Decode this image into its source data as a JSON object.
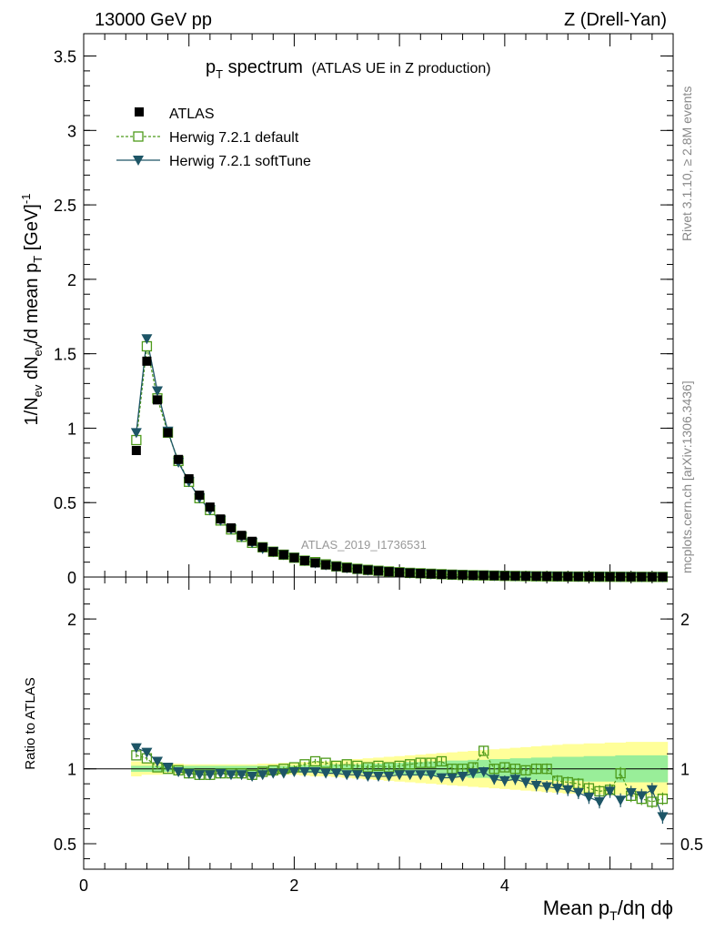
{
  "header": {
    "energy": "13000 GeV pp",
    "process": "Z (Drell-Yan)",
    "plot_title_main": "p",
    "plot_title_sub": "T",
    "plot_title_word": " spectrum",
    "plot_title_extra": "(ATLAS UE in Z production)",
    "analysis_id": "ATLAS_2019_I1736531"
  },
  "side_text": {
    "rivet": "Rivet 3.1.10, ≥ 2.8M events",
    "mcplots": "mcplots.cern.ch [arXiv:1306.3436]"
  },
  "axes": {
    "y_main_label": "1/N_ev dN_ev/d mean p_T [GeV]^-1",
    "y_main_parts": {
      "a": "1/N",
      "b": "ev",
      "c": " dN",
      "d": "ev",
      "e": "/d mean p",
      "f": "T",
      "g": " [GeV]",
      "h": "-1"
    },
    "y_ratio_label": "Ratio to ATLAS",
    "x_label_parts": {
      "a": "Mean p",
      "b": "T",
      "c": "/dη dϕ"
    }
  },
  "legend": [
    {
      "name": "ATLAS",
      "marker": "filled-square",
      "color": "#000000"
    },
    {
      "name": "Herwig 7.2.1 default",
      "marker": "open-square-dashed",
      "color": "#4d9a1a"
    },
    {
      "name": "Herwig 7.2.1 softTune",
      "marker": "filled-triangle-down",
      "color": "#1d5566"
    }
  ],
  "chart_data": [
    {
      "type": "scatter",
      "panel": "main",
      "xlim": [
        0,
        5.6
      ],
      "ylim": [
        0,
        3.65
      ],
      "yticks": [
        "0",
        "0.5",
        "1",
        "1.5",
        "2",
        "2.5",
        "3",
        "3.5"
      ],
      "xticks": [
        "0",
        "2",
        "4"
      ],
      "x": [
        0.5,
        0.6,
        0.7,
        0.8,
        0.9,
        1.0,
        1.1,
        1.2,
        1.3,
        1.4,
        1.5,
        1.6,
        1.7,
        1.8,
        1.9,
        2.0,
        2.1,
        2.2,
        2.3,
        2.4,
        2.5,
        2.6,
        2.7,
        2.8,
        2.9,
        3.0,
        3.1,
        3.2,
        3.3,
        3.4,
        3.5,
        3.6,
        3.7,
        3.8,
        3.9,
        4.0,
        4.1,
        4.2,
        4.3,
        4.4,
        4.5,
        4.6,
        4.7,
        4.8,
        4.9,
        5.0,
        5.1,
        5.2,
        5.3,
        5.4,
        5.5
      ],
      "series": [
        {
          "name": "ATLAS",
          "values": [
            0.85,
            1.45,
            1.19,
            0.97,
            0.79,
            0.66,
            0.55,
            0.47,
            0.39,
            0.33,
            0.28,
            0.24,
            0.2,
            0.17,
            0.15,
            0.13,
            0.11,
            0.095,
            0.082,
            0.071,
            0.062,
            0.054,
            0.047,
            0.041,
            0.036,
            0.031,
            0.027,
            0.024,
            0.021,
            0.018,
            0.016,
            0.014,
            0.012,
            0.011,
            0.0095,
            0.0083,
            0.0073,
            0.0064,
            0.0056,
            0.0049,
            0.0043,
            0.0038,
            0.0033,
            0.0029,
            0.0026,
            0.0023,
            0.002,
            0.0018,
            0.0016,
            0.0014,
            0.0012
          ]
        },
        {
          "name": "Herwig 7.2.1 default",
          "values": [
            0.92,
            1.55,
            1.2,
            0.97,
            0.78,
            0.64,
            0.53,
            0.45,
            0.38,
            0.32,
            0.27,
            0.23,
            0.2,
            0.17,
            0.15,
            0.13,
            0.11,
            0.1,
            0.085,
            0.072,
            0.064,
            0.055,
            0.048,
            0.042,
            0.037,
            0.032,
            0.028,
            0.025,
            0.022,
            0.019,
            0.016,
            0.014,
            0.012,
            0.011,
            0.0095,
            0.008,
            0.007,
            0.006,
            0.005,
            0.0044,
            0.0039,
            0.0034,
            0.0029,
            0.0025,
            0.0022,
            0.0019,
            0.0017,
            0.0015,
            0.0013,
            0.0011,
            0.001
          ]
        },
        {
          "name": "Herwig 7.2.1 softTune",
          "values": [
            0.97,
            1.6,
            1.25,
            0.98,
            0.77,
            0.64,
            0.53,
            0.45,
            0.38,
            0.32,
            0.27,
            0.23,
            0.19,
            0.17,
            0.15,
            0.13,
            0.11,
            0.093,
            0.08,
            0.069,
            0.06,
            0.052,
            0.045,
            0.039,
            0.034,
            0.03,
            0.026,
            0.023,
            0.02,
            0.017,
            0.015,
            0.013,
            0.011,
            0.01,
            0.0086,
            0.0074,
            0.0064,
            0.0055,
            0.0048,
            0.0042,
            0.0036,
            0.0032,
            0.0027,
            0.0023,
            0.0021,
            0.0018,
            0.0016,
            0.0013,
            0.0011,
            0.001,
            0.0008
          ]
        }
      ]
    },
    {
      "type": "scatter",
      "panel": "ratio",
      "ylabel": "Ratio to ATLAS",
      "xlim": [
        0,
        5.6
      ],
      "ylim": [
        0.33,
        2.28
      ],
      "yticks": [
        "0.5",
        "1",
        "2"
      ],
      "xticks": [
        "0",
        "2",
        "4"
      ],
      "x": [
        0.5,
        0.6,
        0.7,
        0.8,
        0.9,
        1.0,
        1.1,
        1.2,
        1.3,
        1.4,
        1.5,
        1.6,
        1.7,
        1.8,
        1.9,
        2.0,
        2.1,
        2.2,
        2.3,
        2.4,
        2.5,
        2.6,
        2.7,
        2.8,
        2.9,
        3.0,
        3.1,
        3.2,
        3.3,
        3.4,
        3.5,
        3.6,
        3.7,
        3.8,
        3.9,
        4.0,
        4.1,
        4.2,
        4.3,
        4.4,
        4.5,
        4.6,
        4.7,
        4.8,
        4.9,
        5.0,
        5.1,
        5.2,
        5.3,
        5.4,
        5.5
      ],
      "band_stat": [
        0.02,
        0.02,
        0.02,
        0.02,
        0.02,
        0.02,
        0.02,
        0.02,
        0.02,
        0.02,
        0.02,
        0.02,
        0.02,
        0.02,
        0.02,
        0.02,
        0.025,
        0.025,
        0.025,
        0.03,
        0.03,
        0.03,
        0.035,
        0.035,
        0.04,
        0.04,
        0.045,
        0.045,
        0.05,
        0.05,
        0.055,
        0.055,
        0.06,
        0.06,
        0.065,
        0.065,
        0.07,
        0.07,
        0.075,
        0.075,
        0.08,
        0.08,
        0.08,
        0.085,
        0.085,
        0.085,
        0.09,
        0.09,
        0.09,
        0.09,
        0.09
      ],
      "band_total": [
        0.05,
        0.04,
        0.04,
        0.035,
        0.035,
        0.03,
        0.03,
        0.03,
        0.03,
        0.03,
        0.03,
        0.03,
        0.035,
        0.035,
        0.04,
        0.04,
        0.045,
        0.05,
        0.05,
        0.055,
        0.06,
        0.065,
        0.07,
        0.075,
        0.08,
        0.085,
        0.09,
        0.095,
        0.1,
        0.105,
        0.11,
        0.115,
        0.12,
        0.125,
        0.13,
        0.135,
        0.14,
        0.145,
        0.15,
        0.155,
        0.16,
        0.165,
        0.165,
        0.17,
        0.17,
        0.175,
        0.175,
        0.18,
        0.18,
        0.18,
        0.18
      ],
      "series": [
        {
          "name": "Herwig 7.2.1 default",
          "values": [
            1.09,
            1.07,
            1.01,
            1.0,
            0.99,
            0.97,
            0.96,
            0.96,
            0.97,
            0.97,
            0.97,
            0.96,
            0.98,
            0.99,
            1.0,
            1.01,
            1.03,
            1.05,
            1.04,
            1.02,
            1.03,
            1.02,
            1.01,
            1.02,
            1.01,
            1.02,
            1.03,
            1.04,
            1.04,
            1.05,
            1.0,
            1.0,
            1.01,
            1.12,
            1.0,
            1.01,
            1.0,
            0.99,
            1.0,
            1.0,
            0.92,
            0.91,
            0.9,
            0.87,
            0.85,
            0.86,
            0.97,
            0.82,
            0.8,
            0.78,
            0.8
          ]
        },
        {
          "name": "Herwig 7.2.1 softTune",
          "values": [
            1.14,
            1.11,
            1.05,
            1.01,
            0.98,
            0.97,
            0.96,
            0.96,
            0.97,
            0.96,
            0.96,
            0.95,
            0.96,
            0.97,
            0.97,
            0.98,
            0.98,
            0.98,
            0.97,
            0.97,
            0.96,
            0.96,
            0.95,
            0.95,
            0.95,
            0.96,
            0.96,
            0.96,
            0.96,
            0.94,
            0.94,
            0.95,
            0.97,
            0.98,
            0.93,
            0.92,
            0.93,
            0.91,
            0.89,
            0.88,
            0.87,
            0.86,
            0.84,
            0.81,
            0.78,
            0.85,
            0.79,
            0.84,
            0.82,
            0.86,
            0.68
          ]
        }
      ]
    }
  ]
}
